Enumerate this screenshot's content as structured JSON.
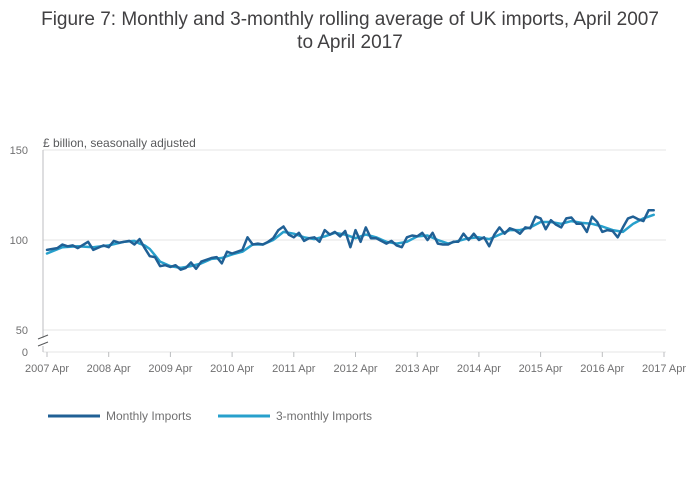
{
  "chart_data": {
    "type": "line",
    "title": "Figure 7: Monthly and 3-monthly rolling average of UK imports, April 2007 to April 2017",
    "title_lines": [
      "Figure 7: Monthly and 3-monthly rolling average of UK imports, April 2007",
      "to April 2017"
    ],
    "unit_label": "£ billion, seasonally adjusted",
    "xlabel": "",
    "ylabel": "",
    "ylim": [
      50,
      150
    ],
    "y_ticks": [
      "150",
      "100",
      "50"
    ],
    "y_tick_values": [
      150,
      100,
      50
    ],
    "y_zero_label": "0",
    "x_ticks": [
      "2007 Apr",
      "2008 Apr",
      "2009 Apr",
      "2010 Apr",
      "2011 Apr",
      "2012 Apr",
      "2013 Apr",
      "2014 Apr",
      "2015 Apr",
      "2016 Apr",
      "2017 Apr"
    ],
    "x_start": "2007 Apr",
    "x_end": "2017 Apr",
    "colors": {
      "monthly": "#206095",
      "rolling": "#27a0cc",
      "grid": "#e6e6e6",
      "axis": "#bcbec0"
    },
    "series": [
      {
        "name": "Monthly Imports",
        "key": "monthly",
        "anchors": [
          [
            0,
            94.5
          ],
          [
            2,
            95.5
          ],
          [
            3,
            97.5
          ],
          [
            4,
            96.5
          ],
          [
            5,
            97
          ],
          [
            6,
            95.5
          ],
          [
            8,
            99
          ],
          [
            9,
            94.5
          ],
          [
            11,
            97
          ],
          [
            12,
            96
          ],
          [
            13,
            99.5
          ],
          [
            14,
            98.5
          ],
          [
            16,
            99.5
          ],
          [
            17,
            97.5
          ],
          [
            18,
            100.5
          ],
          [
            19,
            95.5
          ],
          [
            20,
            91
          ],
          [
            21,
            90.5
          ],
          [
            22,
            85.5
          ],
          [
            23,
            86
          ],
          [
            24,
            85
          ],
          [
            25,
            86
          ],
          [
            26,
            83.5
          ],
          [
            27,
            84.5
          ],
          [
            28,
            87.5
          ],
          [
            29,
            84
          ],
          [
            30,
            88
          ],
          [
            32,
            90
          ],
          [
            33,
            90.5
          ],
          [
            34,
            87
          ],
          [
            35,
            93.5
          ],
          [
            36,
            92.5
          ],
          [
            38,
            94.5
          ],
          [
            39,
            101.5
          ],
          [
            40,
            97.5
          ],
          [
            41,
            98
          ],
          [
            42,
            97.5
          ],
          [
            43,
            99
          ],
          [
            44,
            101
          ],
          [
            45,
            105.5
          ],
          [
            46,
            107.5
          ],
          [
            47,
            103
          ],
          [
            48,
            101.5
          ],
          [
            49,
            104
          ],
          [
            50,
            99.5
          ],
          [
            51,
            101
          ],
          [
            52,
            101.5
          ],
          [
            53,
            99
          ],
          [
            54,
            105.5
          ],
          [
            55,
            103
          ],
          [
            56,
            104.5
          ],
          [
            57,
            102
          ],
          [
            58,
            105
          ],
          [
            59,
            96
          ],
          [
            60,
            105.5
          ],
          [
            61,
            99
          ],
          [
            62,
            107
          ],
          [
            63,
            101
          ],
          [
            64,
            101
          ],
          [
            66,
            98
          ],
          [
            67,
            99.5
          ],
          [
            68,
            97
          ],
          [
            69,
            96
          ],
          [
            70,
            101.5
          ],
          [
            71,
            102.5
          ],
          [
            72,
            102
          ],
          [
            73,
            104
          ],
          [
            74,
            100
          ],
          [
            75,
            104
          ],
          [
            76,
            98
          ],
          [
            77,
            97.5
          ],
          [
            78,
            97.5
          ],
          [
            79,
            99
          ],
          [
            80,
            99
          ],
          [
            81,
            103.5
          ],
          [
            82,
            100
          ],
          [
            83,
            103.5
          ],
          [
            84,
            100
          ],
          [
            85,
            101.5
          ],
          [
            86,
            96.5
          ],
          [
            87,
            103
          ],
          [
            88,
            107
          ],
          [
            89,
            103.5
          ],
          [
            90,
            106.5
          ],
          [
            91,
            105.5
          ],
          [
            92,
            103.5
          ],
          [
            93,
            107
          ],
          [
            94,
            106.5
          ],
          [
            95,
            113
          ],
          [
            96,
            112
          ],
          [
            97,
            106
          ],
          [
            98,
            111
          ],
          [
            99,
            108.5
          ],
          [
            100,
            107
          ],
          [
            101,
            112
          ],
          [
            102,
            112.5
          ],
          [
            103,
            109
          ],
          [
            104,
            109
          ],
          [
            105,
            104.5
          ],
          [
            106,
            113
          ],
          [
            107,
            110
          ],
          [
            108,
            104.5
          ],
          [
            109,
            105.5
          ],
          [
            110,
            105
          ],
          [
            111,
            101.5
          ],
          [
            112,
            107
          ],
          [
            113,
            112
          ],
          [
            114,
            113
          ],
          [
            115,
            111.5
          ],
          [
            116,
            110.5
          ],
          [
            117,
            116.5
          ],
          [
            118,
            116.5
          ]
        ]
      },
      {
        "name": "3-monthly Imports",
        "key": "rolling",
        "anchors": [
          [
            0,
            92.5
          ],
          [
            3,
            96
          ],
          [
            6,
            96.5
          ],
          [
            9,
            96
          ],
          [
            12,
            97
          ],
          [
            15,
            99
          ],
          [
            17,
            99.5
          ],
          [
            18,
            98
          ],
          [
            19,
            97
          ],
          [
            20,
            95
          ],
          [
            21,
            91.5
          ],
          [
            22,
            88
          ],
          [
            24,
            85.5
          ],
          [
            26,
            84.5
          ],
          [
            28,
            85.5
          ],
          [
            30,
            87
          ],
          [
            32,
            89.5
          ],
          [
            34,
            90
          ],
          [
            36,
            92
          ],
          [
            38,
            93.5
          ],
          [
            40,
            97.5
          ],
          [
            42,
            97.5
          ],
          [
            44,
            100
          ],
          [
            46,
            104.5
          ],
          [
            48,
            103.5
          ],
          [
            50,
            101.5
          ],
          [
            52,
            100.5
          ],
          [
            54,
            102
          ],
          [
            56,
            104
          ],
          [
            58,
            103
          ],
          [
            60,
            101
          ],
          [
            62,
            103
          ],
          [
            64,
            101.5
          ],
          [
            66,
            99
          ],
          [
            68,
            98
          ],
          [
            70,
            99
          ],
          [
            72,
            102
          ],
          [
            74,
            102.5
          ],
          [
            76,
            100
          ],
          [
            78,
            98
          ],
          [
            80,
            99.5
          ],
          [
            82,
            101
          ],
          [
            84,
            101.5
          ],
          [
            86,
            100.5
          ],
          [
            88,
            103
          ],
          [
            90,
            105.5
          ],
          [
            92,
            105.5
          ],
          [
            94,
            107
          ],
          [
            96,
            110
          ],
          [
            98,
            110
          ],
          [
            100,
            109
          ],
          [
            102,
            110.5
          ],
          [
            104,
            109.5
          ],
          [
            106,
            109
          ],
          [
            108,
            107.5
          ],
          [
            110,
            105.5
          ],
          [
            112,
            104.5
          ],
          [
            114,
            109
          ],
          [
            116,
            112
          ],
          [
            118,
            114
          ]
        ]
      }
    ],
    "legend": {
      "position": "bottom-left",
      "entries": [
        "Monthly Imports",
        "3-monthly Imports"
      ]
    }
  }
}
